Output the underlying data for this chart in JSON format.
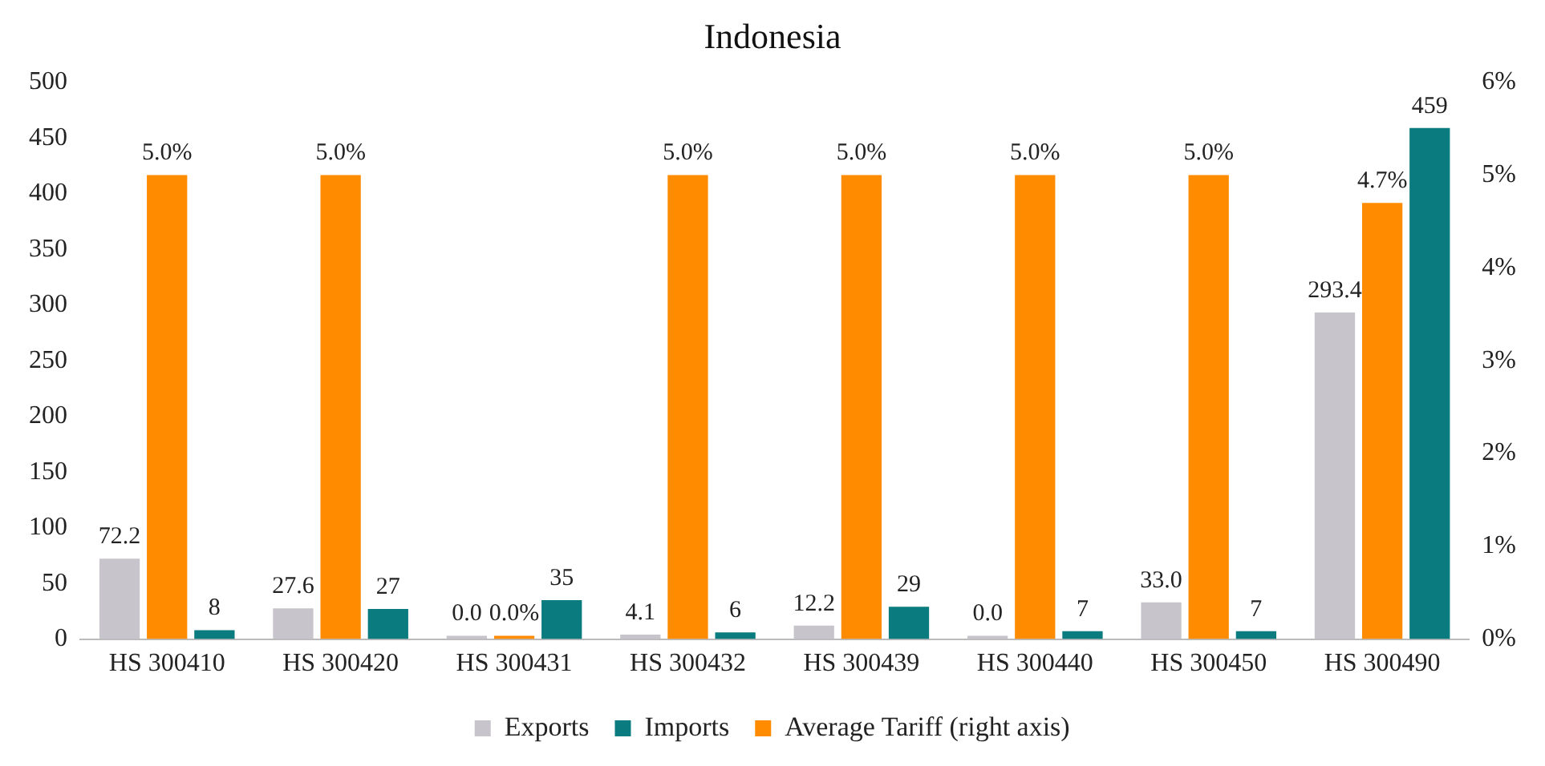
{
  "chart_data": {
    "type": "bar",
    "title": "Indonesia",
    "categories": [
      "HS 300410",
      "HS 300420",
      "HS 300431",
      "HS 300432",
      "HS 300439",
      "HS 300440",
      "HS 300450",
      "HS 300490"
    ],
    "series": [
      {
        "name": "Exports",
        "color": "#c8c4cb",
        "values": [
          72.2,
          27.6,
          0.0,
          4.1,
          12.2,
          0.0,
          33.0,
          293.4
        ],
        "value_labels": [
          "72.2",
          "27.6",
          "0.0",
          "4.1",
          "12.2",
          "0.0",
          "33.0",
          "293.4"
        ]
      },
      {
        "name": "Average Tariff (right axis)",
        "color": "#ff8c00",
        "axis": "y2",
        "values": [
          5.0,
          5.0,
          0.0,
          5.0,
          5.0,
          5.0,
          5.0,
          4.7
        ],
        "value_labels": [
          "5.0%",
          "5.0%",
          "0.0%",
          "5.0%",
          "5.0%",
          "5.0%",
          "5.0%",
          "4.7%"
        ]
      },
      {
        "name": "Imports",
        "color": "#0a7b7f",
        "values": [
          8,
          27,
          35,
          6,
          29,
          7,
          7,
          459
        ],
        "value_labels": [
          "8",
          "27",
          "35",
          "6",
          "29",
          "7",
          "7",
          "459"
        ]
      }
    ],
    "ylim": [
      0,
      500
    ],
    "yticks": [
      0,
      50,
      100,
      150,
      200,
      250,
      300,
      350,
      400,
      450,
      500
    ],
    "y2lim": [
      0,
      6
    ],
    "y2ticks": [
      {
        "value": 0,
        "label": "0%"
      },
      {
        "value": 1,
        "label": "1%"
      },
      {
        "value": 2,
        "label": "2%"
      },
      {
        "value": 3,
        "label": "3%"
      },
      {
        "value": 4,
        "label": "4%"
      },
      {
        "value": 5,
        "label": "5%"
      },
      {
        "value": 6,
        "label": "6%"
      }
    ],
    "grid": false,
    "legend": "bottom"
  }
}
